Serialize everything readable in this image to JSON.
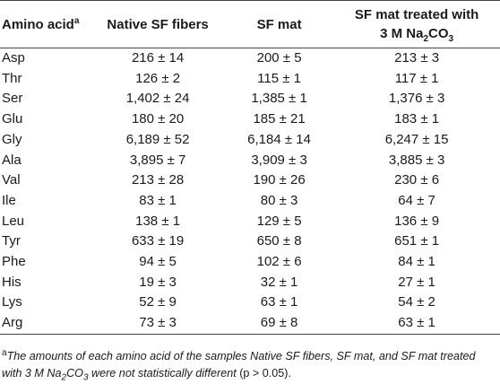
{
  "table": {
    "headers": {
      "col0": "Amino acid",
      "col0_sup": "a",
      "col1": "Native SF fibers",
      "col2": "SF mat",
      "col3_line1": "SF mat treated with",
      "col3_line2_pre": "3 M Na",
      "col3_line2_sub": "2",
      "col3_line2_mid": "CO",
      "col3_line2_sub2": "3"
    },
    "rows": [
      {
        "acid": "Asp",
        "native": "216 ± 14",
        "mat": "200 ± 5",
        "treated": "213 ± 3"
      },
      {
        "acid": "Thr",
        "native": "126 ± 2",
        "mat": "115 ± 1",
        "treated": "117 ± 1"
      },
      {
        "acid": "Ser",
        "native": "1,402 ± 24",
        "mat": "1,385 ± 1",
        "treated": "1,376 ± 3"
      },
      {
        "acid": "Glu",
        "native": "180 ± 20",
        "mat": "185 ± 21",
        "treated": "183 ± 1"
      },
      {
        "acid": "Gly",
        "native": "6,189 ± 52",
        "mat": "6,184 ± 14",
        "treated": "6,247 ± 15"
      },
      {
        "acid": "Ala",
        "native": "3,895 ± 7",
        "mat": "3,909 ± 3",
        "treated": "3,885 ± 3"
      },
      {
        "acid": "Val",
        "native": "213 ± 28",
        "mat": "190 ± 26",
        "treated": "230 ± 6"
      },
      {
        "acid": "Ile",
        "native": "83 ± 1",
        "mat": "80 ± 3",
        "treated": "64 ± 7"
      },
      {
        "acid": "Leu",
        "native": "138 ± 1",
        "mat": "129 ± 5",
        "treated": "136 ± 9"
      },
      {
        "acid": "Tyr",
        "native": "633 ± 19",
        "mat": "650 ± 8",
        "treated": "651 ± 1"
      },
      {
        "acid": "Phe",
        "native": "94 ± 5",
        "mat": "102 ± 6",
        "treated": "84 ± 1"
      },
      {
        "acid": "His",
        "native": "19 ± 3",
        "mat": "32 ± 1",
        "treated": "27 ± 1"
      },
      {
        "acid": "Lys",
        "native": "52 ± 9",
        "mat": "63 ± 1",
        "treated": "54 ± 2"
      },
      {
        "acid": "Arg",
        "native": "73 ± 3",
        "mat": "69 ± 8",
        "treated": "63 ± 1"
      }
    ]
  },
  "footnote": {
    "marker": "a",
    "text_italic": "The amounts of each amino acid of the samples Native SF fibers, SF mat, and SF mat treated with 3 M Na",
    "sub1": "2",
    "text_italic2": "CO",
    "sub2": "3",
    "text_italic3": " were not statistically different",
    "text_plain": " (p > 0.05)."
  }
}
